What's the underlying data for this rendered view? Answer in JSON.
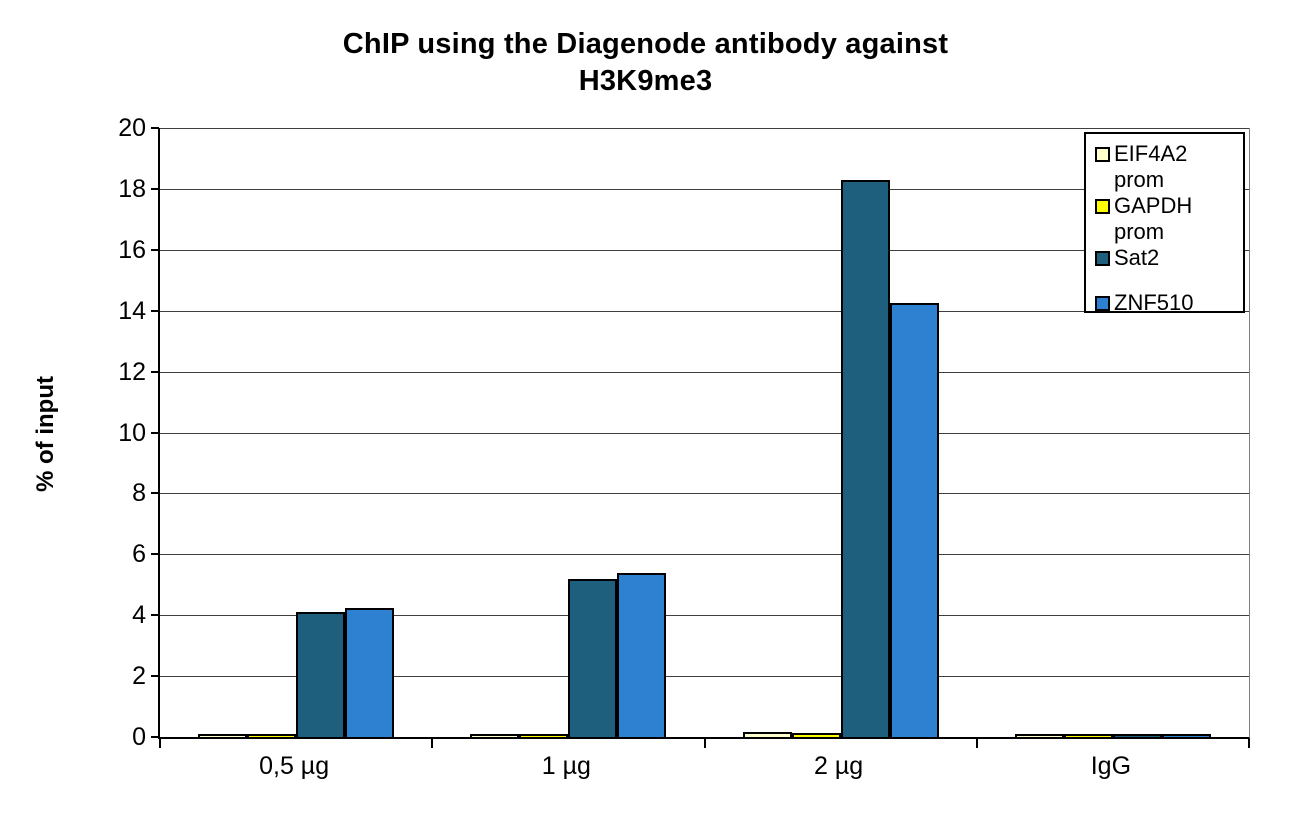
{
  "title": {
    "line1": "ChIP using the Diagenode antibody against",
    "line2": "H3K9me3"
  },
  "chart_data": {
    "type": "bar",
    "title": "ChIP using the Diagenode antibody against H3K9me3",
    "categories": [
      "0,5 µg",
      "1 µg",
      "2 µg",
      "IgG"
    ],
    "series": [
      {
        "name": "EIF4A2 prom",
        "color": "#FFFFCC",
        "values": [
          0.05,
          0.05,
          0.15,
          0.05
        ]
      },
      {
        "name": "GAPDH prom",
        "color": "#FFFF00",
        "values": [
          0.05,
          0.05,
          0.12,
          0.05
        ]
      },
      {
        "name": "Sat2",
        "color": "#1E5F7E",
        "values": [
          4.1,
          5.2,
          18.3,
          0.05
        ]
      },
      {
        "name": "ZNF510",
        "color": "#2E80D0",
        "values": [
          4.25,
          5.4,
          14.25,
          0.05
        ]
      }
    ],
    "xlabel": "",
    "ylabel": "% of input",
    "ylim": [
      0,
      20
    ],
    "yticks": [
      0,
      2,
      4,
      6,
      8,
      10,
      12,
      14,
      16,
      18,
      20
    ],
    "grid": true,
    "gridline_color": "#3f3f3f",
    "bar_outline_color": "#000000",
    "legend_position": "top-right"
  },
  "legend": {
    "items": [
      {
        "label": "EIF4A2\nprom"
      },
      {
        "label": "GAPDH\nprom"
      },
      {
        "label": "Sat2"
      },
      {
        "label": "ZNF510"
      }
    ]
  }
}
